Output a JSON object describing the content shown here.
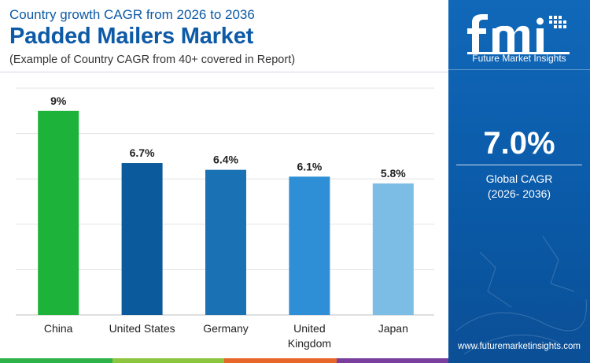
{
  "header": {
    "subtitle": "Country growth CAGR from 2026 to 2036",
    "title": "Padded Mailers Market",
    "note": "(Example of Country CAGR from 40+ covered in Report)"
  },
  "sidebar": {
    "brand": "Future Market Insights",
    "kpi_value": "7.0%",
    "kpi_label_line1": "Global CAGR",
    "kpi_label_line2": "(2026- 2036)",
    "website": "www.futuremarketinsights.com"
  },
  "chart_data": {
    "type": "bar",
    "title": "Padded Mailers Market",
    "subtitle": "Country growth CAGR from 2026 to 2036",
    "categories": [
      "China",
      "United States",
      "Germany",
      "United Kingdom",
      "Japan"
    ],
    "category_lines": [
      [
        "China"
      ],
      [
        "United States"
      ],
      [
        "Germany"
      ],
      [
        "United",
        "Kingdom"
      ],
      [
        "Japan"
      ]
    ],
    "values": [
      9,
      6.7,
      6.4,
      6.1,
      5.8
    ],
    "data_labels": [
      "9%",
      "6.7%",
      "6.4%",
      "6.1%",
      "5.8%"
    ],
    "colors": [
      "#1db33b",
      "#0b5a9b",
      "#1a72b4",
      "#2f8fd6",
      "#7cbde6"
    ],
    "ylim": [
      0,
      10
    ],
    "grid": true,
    "legend": "none"
  },
  "colors": {
    "accent": "#0d5aa7",
    "strip": [
      "#2fb24a",
      "#8cc63f",
      "#e8662a",
      "#7a3f9d"
    ]
  },
  "icons": [
    "fmi-logo",
    "globe-icon"
  ]
}
